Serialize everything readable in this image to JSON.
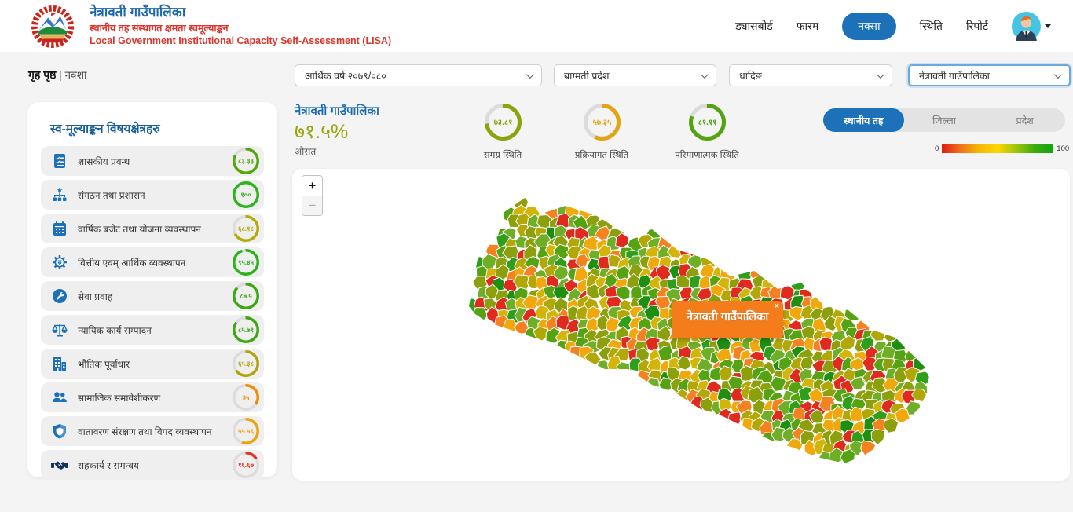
{
  "header": {
    "title": "नेत्रावती गाउँपालिका",
    "subtitle_np": "स्थानीय तह संस्थागत क्षमता स्वमूल्याङ्कन",
    "subtitle_en": "Local Government Institutional Capacity Self-Assessment (LISA)",
    "nav": [
      {
        "label": "ड्यासबोर्ड",
        "active": false
      },
      {
        "label": "फारम",
        "active": false
      },
      {
        "label": "नक्सा",
        "active": true
      },
      {
        "label": "स्थिति",
        "active": false
      },
      {
        "label": "रिपोर्ट",
        "active": false
      }
    ]
  },
  "breadcrumb": {
    "home": "गृह पृष्ठ",
    "separator": "|",
    "current": "नक्शा"
  },
  "filters": [
    {
      "value": "आर्थिक वर्ष २०७९/०८०"
    },
    {
      "value": "बाग्मती प्रदेश"
    },
    {
      "value": "धादिङ"
    },
    {
      "value": "नेत्रावती गाउँपालिका"
    }
  ],
  "sidebar": {
    "title": "स्व-मूल्याङ्कन विषयक्षेत्रहरु",
    "items": [
      {
        "label": "शासकीय प्रवन्ध",
        "icon": "document-checklist-icon",
        "ring": {
          "value": 83.33,
          "text": "८३.३३",
          "color": "#56a610"
        }
      },
      {
        "label": "संगठन तथा प्रशासन",
        "icon": "org-chart-icon",
        "ring": {
          "value": 100,
          "text": "१००",
          "color": "#2db31c"
        }
      },
      {
        "label": "वार्षिक बजेट तथा योजना व्यवस्थापन",
        "icon": "calendar-icon",
        "ring": {
          "value": 68.18,
          "text": "६८.१८",
          "color": "#b3ab08"
        }
      },
      {
        "label": "वित्तीय एवम् आर्थिक व्यवस्थापन",
        "icon": "finance-gear-icon",
        "ring": {
          "value": 95.45,
          "text": "९५.४५",
          "color": "#2db31c"
        }
      },
      {
        "label": "सेवा प्रवाह",
        "icon": "service-wrench-icon",
        "ring": {
          "value": 87.5,
          "text": "८७.५",
          "color": "#3fa713"
        }
      },
      {
        "label": "न्यायिक कार्य सम्पादन",
        "icon": "justice-scales-icon",
        "ring": {
          "value": 85.71,
          "text": "८५.७१",
          "color": "#3fa713"
        }
      },
      {
        "label": "भौतिक पूर्वाधार",
        "icon": "building-icon",
        "ring": {
          "value": 65.38,
          "text": "६५.३८",
          "color": "#b3a30d"
        }
      },
      {
        "label": "सामाजिक समावेशीकरण",
        "icon": "people-icon",
        "ring": {
          "value": 35,
          "text": "३५",
          "color": "#f68a07"
        }
      },
      {
        "label": "वातावरण संरक्षण तथा विपद व्यवस्थापन",
        "icon": "shield-icon",
        "ring": {
          "value": 55.56,
          "text": "५५.५६",
          "color": "#eba50a"
        }
      },
      {
        "label": "सहकार्य र समन्वय",
        "icon": "handshake-icon",
        "ring": {
          "value": 16.67,
          "text": "१६.६७",
          "color": "#e8321f"
        }
      }
    ]
  },
  "summary": {
    "municipality": "नेत्रावती गाउँपालिका",
    "average_value": "७१.५%",
    "average_label": "औसत",
    "gauges": [
      {
        "label": "समग्र स्थिति",
        "ring": {
          "value": 73.81,
          "text": "७३.८१",
          "color": "#8ca30b"
        }
      },
      {
        "label": "प्रक्रियागत स्थिति",
        "ring": {
          "value": 57.35,
          "text": "५७.३५",
          "color": "#e5a310"
        }
      },
      {
        "label": "परिमाणात्मक स्थिति",
        "ring": {
          "value": 81.11,
          "text": "८१.११",
          "color": "#54a411"
        }
      }
    ]
  },
  "level_tabs": [
    {
      "label": "स्थानीय तह",
      "active": true
    },
    {
      "label": "जिल्ला",
      "active": false
    },
    {
      "label": "प्रदेश",
      "active": false
    }
  ],
  "scale": {
    "min": "0",
    "max": "100"
  },
  "map": {
    "zoom_in": "+",
    "zoom_out": "−",
    "popup": {
      "title": "नेत्रावती गाउँपालिका",
      "close": "×"
    },
    "palette": [
      "#e02a1d",
      "#f58220",
      "#f0a80c",
      "#d3b408",
      "#b1a807",
      "#8ca00d",
      "#6fae27",
      "#55a312",
      "#2f9e1a",
      "#1f8f12"
    ]
  }
}
